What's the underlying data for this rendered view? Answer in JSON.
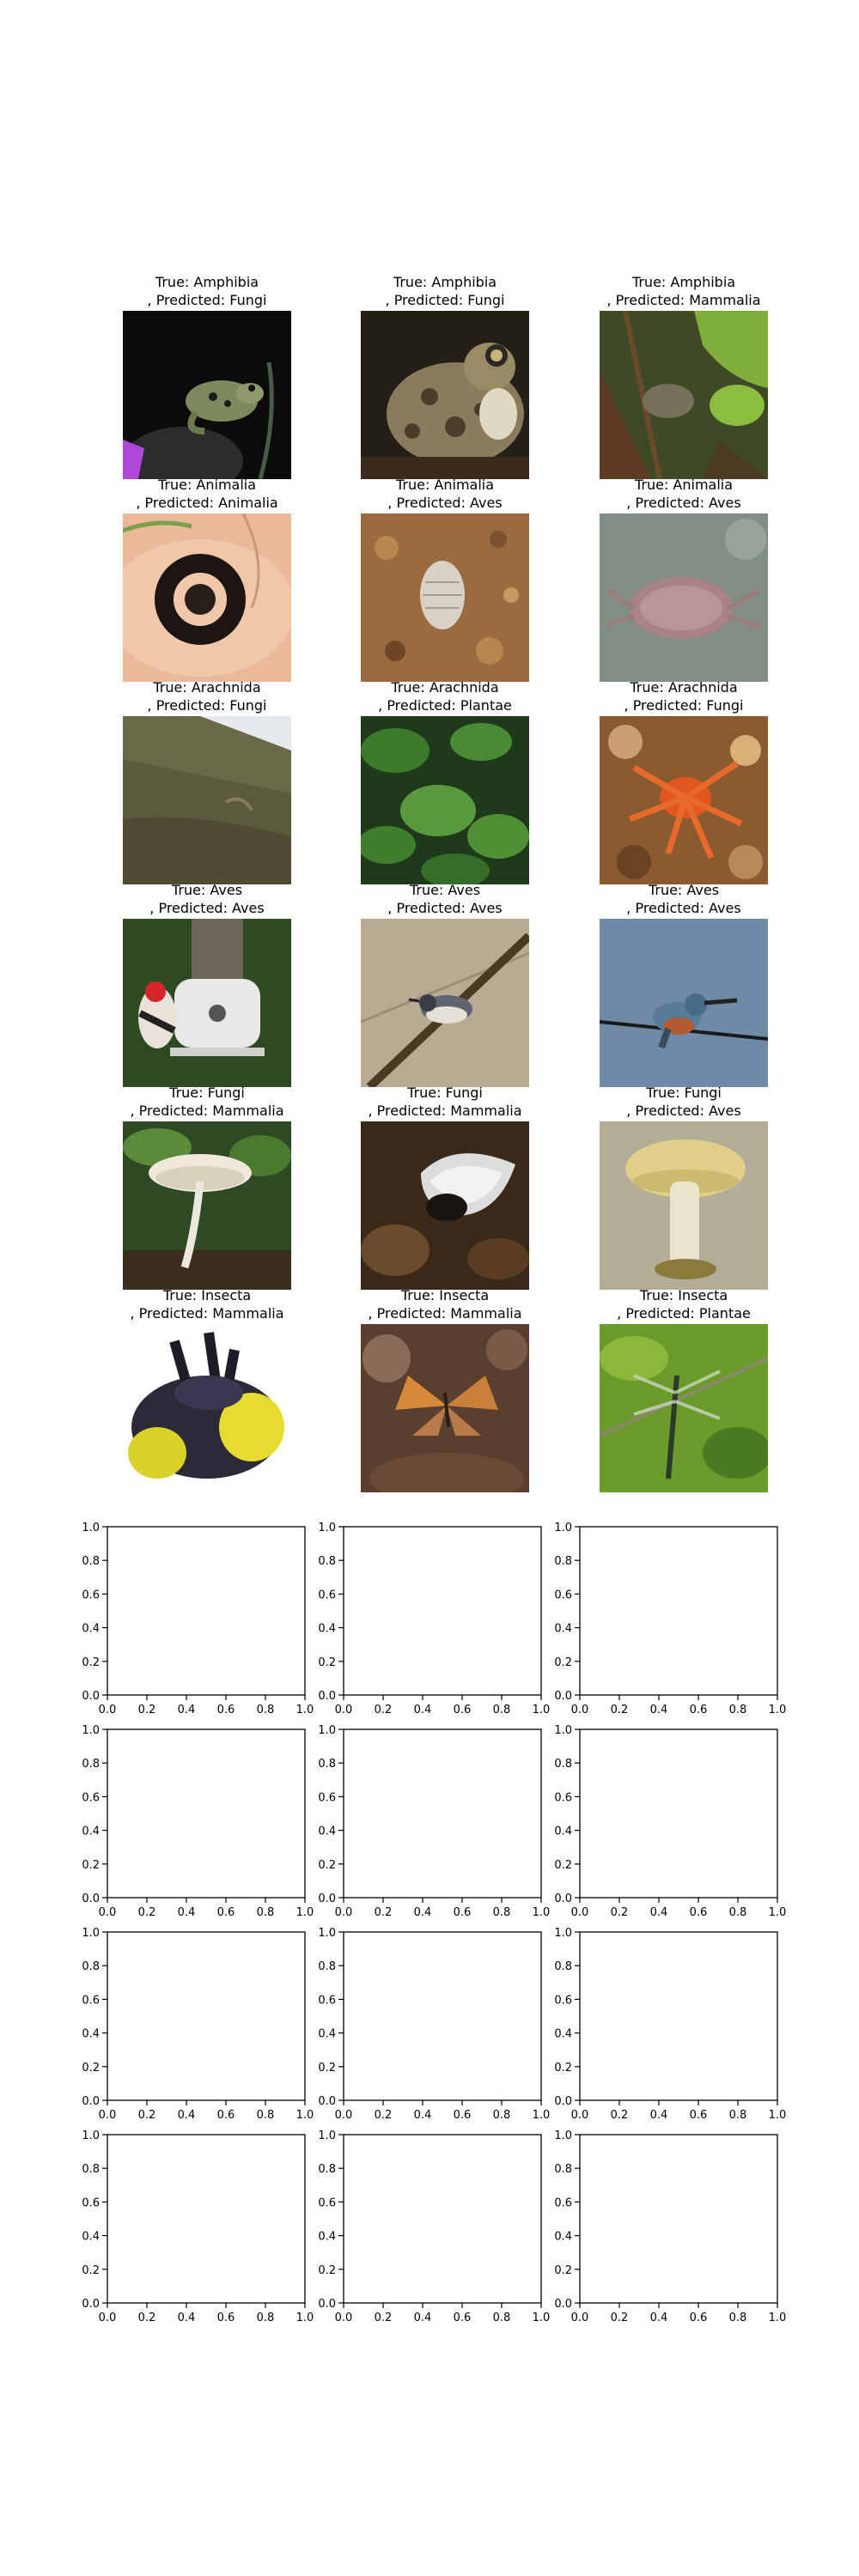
{
  "chart_data": {
    "type": "image-grid",
    "panels": [
      {
        "title": "True: Amphibia\n, Predicted: Fungi",
        "image": "frog-icon"
      },
      {
        "title": "True: Amphibia\n, Predicted: Fungi",
        "image": "toad-icon"
      },
      {
        "title": "True: Amphibia\n, Predicted: Mammalia",
        "image": "frog-in-leaves-icon"
      },
      {
        "title": "True: Animalia\n, Predicted: Animalia",
        "image": "millipede-icon"
      },
      {
        "title": "True: Animalia\n, Predicted: Aves",
        "image": "isopod-icon"
      },
      {
        "title": "True: Animalia\n, Predicted: Aves",
        "image": "crab-icon"
      },
      {
        "title": "True: Arachnida\n, Predicted: Fungi",
        "image": "grass-slope-icon"
      },
      {
        "title": "True: Arachnida\n, Predicted: Plantae",
        "image": "leaves-icon"
      },
      {
        "title": "True: Arachnida\n, Predicted: Fungi",
        "image": "red-mite-icon"
      },
      {
        "title": "True: Aves\n, Predicted: Aves",
        "image": "woodpecker-feeder-icon"
      },
      {
        "title": "True: Aves\n, Predicted: Aves",
        "image": "nuthatch-icon"
      },
      {
        "title": "True: Aves\n, Predicted: Aves",
        "image": "kingfisher-icon"
      },
      {
        "title": "True: Fungi\n, Predicted: Mammalia",
        "image": "white-mushroom-icon"
      },
      {
        "title": "True: Fungi\n, Predicted: Mammalia",
        "image": "cup-fungus-icon"
      },
      {
        "title": "True: Fungi\n, Predicted: Aves",
        "image": "tan-mushroom-icon"
      },
      {
        "title": "True: Insecta\n, Predicted: Mammalia",
        "image": "bumblebee-icon"
      },
      {
        "title": "True: Insecta\n, Predicted: Mammalia",
        "image": "butterfly-icon"
      },
      {
        "title": "True: Insecta\n, Predicted: Plantae",
        "image": "dragonfly-icon"
      }
    ],
    "empty_axes": {
      "rows": 4,
      "cols": 3,
      "xlim": [
        0.0,
        1.0
      ],
      "ylim": [
        0.0,
        1.0
      ],
      "xticks": [
        "0.0",
        "0.2",
        "0.4",
        "0.6",
        "0.8",
        "1.0"
      ],
      "yticks": [
        "0.0",
        "0.2",
        "0.4",
        "0.6",
        "0.8",
        "1.0"
      ]
    }
  }
}
